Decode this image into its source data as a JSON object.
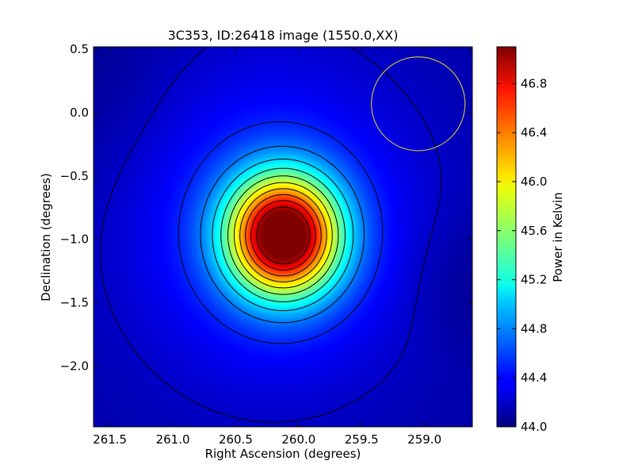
{
  "chart_data": {
    "type": "heatmap",
    "title": "3C353, ID:26418 image (1550.0,XX)",
    "xlabel": "Right Ascension (degrees)",
    "ylabel": "Declination (degrees)",
    "xlim": [
      261.63,
      258.62
    ],
    "ylim": [
      -2.48,
      0.52
    ],
    "x_ticks": [
      "261.5",
      "261.0",
      "260.5",
      "260.0",
      "259.5",
      "259.0"
    ],
    "x_tick_values": [
      261.5,
      261.0,
      260.5,
      260.0,
      259.5,
      259.0
    ],
    "y_ticks": [
      "0.5",
      "0.0",
      "−0.5",
      "−1.0",
      "−1.5",
      "−2.0"
    ],
    "y_tick_values": [
      0.5,
      0.0,
      -0.5,
      -1.0,
      -1.5,
      -2.0
    ],
    "colorbar": {
      "label": "Power in Kelvin",
      "min": 44.0,
      "max": 47.1,
      "ticks": [
        "44.0",
        "44.4",
        "44.8",
        "45.2",
        "45.6",
        "46.0",
        "46.4",
        "46.8"
      ],
      "tick_values": [
        44.0,
        44.4,
        44.8,
        45.2,
        45.6,
        46.0,
        46.4,
        46.8
      ],
      "colormap": "jet"
    },
    "source_peak": {
      "ra": 260.12,
      "dec": -0.97,
      "value": 47.1
    },
    "contour_levels": 11,
    "beam_circle": {
      "ra": 259.05,
      "dec": 0.07,
      "radius_deg": 0.37,
      "color": "#c8b840"
    },
    "grid": false
  }
}
